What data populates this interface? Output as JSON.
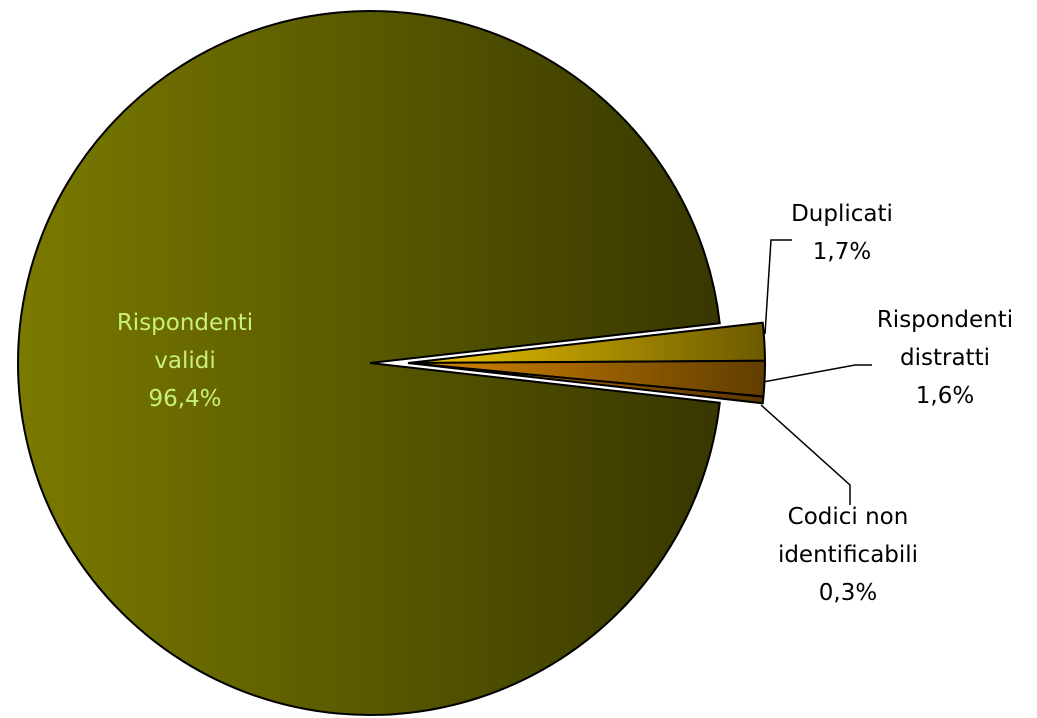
{
  "chart_data": {
    "type": "pie",
    "slices": [
      {
        "lines": [
          "Rispondenti",
          "validi"
        ],
        "value_label": "96,4%",
        "value": 96.4,
        "color": "#7a7a00",
        "label_color": "#c8f07a"
      },
      {
        "lines": [
          "Duplicati"
        ],
        "value_label": "1,7%",
        "value": 1.7,
        "color": "#f0c800",
        "label_color": "#000000"
      },
      {
        "lines": [
          "Rispondenti",
          "distratti"
        ],
        "value_label": "1,6%",
        "value": 1.6,
        "color": "#d88800",
        "label_color": "#000000"
      },
      {
        "lines": [
          "Codici non",
          "identificabili"
        ],
        "value_label": "0,3%",
        "value": 0.3,
        "color": "#c87800",
        "label_color": "#000000"
      }
    ],
    "exploded_slices": [
      1,
      2,
      3
    ],
    "legend": "none"
  }
}
